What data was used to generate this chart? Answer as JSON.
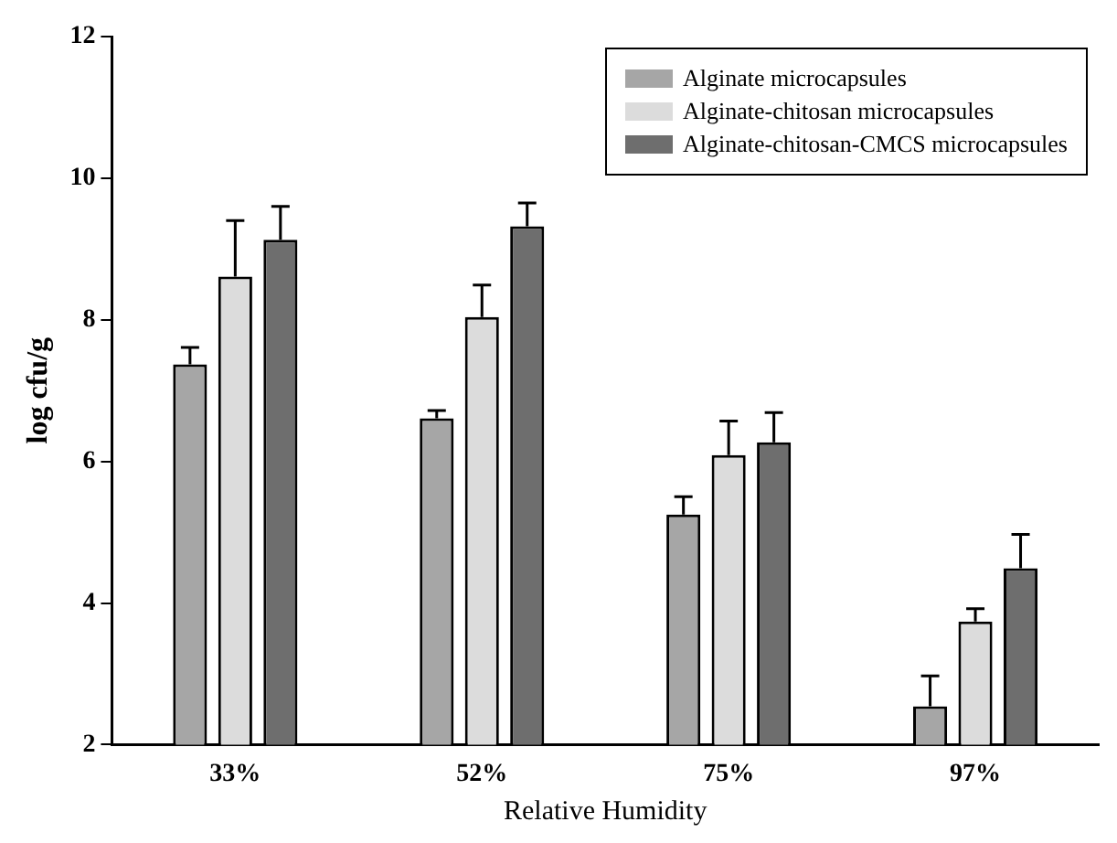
{
  "chart_data": {
    "type": "bar",
    "xlabel": "Relative Humidity",
    "ylabel": "log cfu/g",
    "categories": [
      "33%",
      "52%",
      "75%",
      "97%"
    ],
    "series": [
      {
        "name": "Alginate microcapsules",
        "color": "#a6a6a6",
        "values": [
          7.37,
          6.61,
          5.25,
          2.54
        ],
        "errors": [
          0.24,
          0.11,
          0.25,
          0.43
        ]
      },
      {
        "name": "Alginate-chitosan microcapsules",
        "color": "#dcdcdc",
        "values": [
          8.61,
          8.04,
          6.09,
          3.74
        ],
        "errors": [
          0.79,
          0.45,
          0.48,
          0.18
        ]
      },
      {
        "name": "Alginate-chitosan-CMCS microcapsules",
        "color": "#6e6e6e",
        "values": [
          9.13,
          9.32,
          6.27,
          4.49
        ],
        "errors": [
          0.47,
          0.33,
          0.42,
          0.48
        ]
      }
    ],
    "ylim": [
      2,
      12
    ],
    "yticks": [
      2,
      4,
      6,
      8,
      10,
      12
    ],
    "grid": false,
    "legend": "top right"
  }
}
